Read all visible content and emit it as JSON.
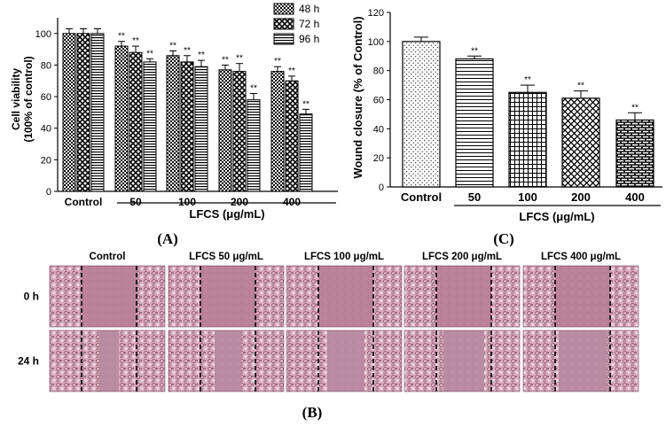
{
  "colors": {
    "ink": "#000000",
    "scratch_bg": "#b37b93",
    "cell_tint": "#d9aebd"
  },
  "chart_data": [
    {
      "type": "bar",
      "panel_label": "A",
      "categories": [
        "Control",
        "50",
        "100",
        "200",
        "400"
      ],
      "xlabel": "LFCS (μg/mL)",
      "ylabel": "Cell viability (100% of control)",
      "ylim": [
        0,
        110
      ],
      "yticks": [
        "0",
        "20",
        "40",
        "60",
        "80",
        "100"
      ],
      "legend": {
        "placement": "top-right",
        "entries": [
          "48 h",
          "72 h",
          "96 h"
        ]
      },
      "series": [
        {
          "name": "48 h",
          "values": [
            100,
            92,
            86,
            77,
            76
          ],
          "errors": [
            3,
            3,
            3,
            3,
            3
          ]
        },
        {
          "name": "72 h",
          "values": [
            100,
            88,
            82,
            76,
            70
          ],
          "errors": [
            3,
            4,
            4,
            5,
            3
          ]
        },
        {
          "name": "96 h",
          "values": [
            100,
            82,
            79,
            58,
            49
          ],
          "errors": [
            3,
            2,
            4,
            4,
            3
          ]
        }
      ],
      "significance": [
        [
          "",
          "",
          ""
        ],
        [
          "**",
          "**",
          "**"
        ],
        [
          "**",
          "**",
          "**"
        ],
        [
          "**",
          "**",
          "**"
        ],
        [
          "**",
          "**",
          "**"
        ]
      ]
    },
    {
      "type": "bar",
      "panel_label": "C",
      "categories": [
        "Control",
        "50",
        "100",
        "200",
        "400"
      ],
      "xlabel": "LFCS (μg/mL)",
      "ylabel": "Wound closure (% of Control)",
      "ylim": [
        0,
        120
      ],
      "yticks": [
        "0",
        "20",
        "40",
        "60",
        "80",
        "100",
        "120"
      ],
      "values": [
        100,
        88,
        65,
        61,
        46
      ],
      "errors": [
        3,
        2,
        5,
        5,
        5
      ],
      "significance": [
        "",
        "**",
        "**",
        "**",
        "**"
      ]
    }
  ],
  "micrographs": {
    "panel_label": "B",
    "columns": [
      "Control",
      "LFCS 50 μg/mL",
      "LFCS 100 μg/mL",
      "LFCS 200 μg/mL",
      "LFCS 400 μg/mL"
    ],
    "rows": [
      "0 h",
      "24 h"
    ]
  }
}
